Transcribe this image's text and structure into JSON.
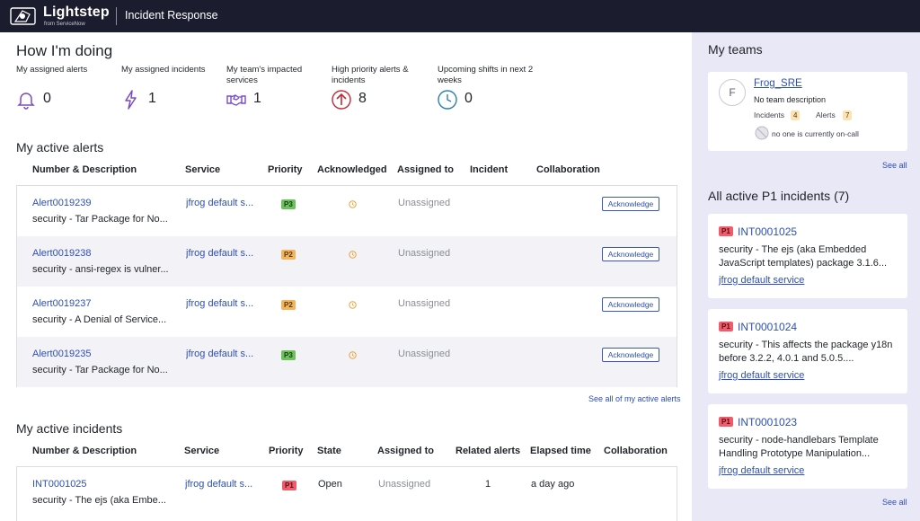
{
  "header": {
    "brand": "Lightstep",
    "brand_sub": "from ServiceNow",
    "app_title": "Incident Response"
  },
  "summary": {
    "title": "How I'm doing",
    "metrics": [
      {
        "label": "My assigned alerts",
        "value": "0",
        "icon": "bell-icon"
      },
      {
        "label": "My assigned incidents",
        "value": "1",
        "icon": "lightning-icon"
      },
      {
        "label": "My team's impacted services",
        "value": "1",
        "icon": "handshake-icon"
      },
      {
        "label": "High priority alerts & incidents",
        "value": "8",
        "icon": "arrow-up-circle-icon"
      },
      {
        "label": "Upcoming shifts in next 2 weeks",
        "value": "0",
        "icon": "clock-icon"
      }
    ]
  },
  "alerts": {
    "title": "My active alerts",
    "columns": [
      "Number & Description",
      "Service",
      "Priority",
      "Acknowledged",
      "Assigned to",
      "Incident",
      "Collaboration"
    ],
    "rows": [
      {
        "number": "Alert0019239",
        "desc": "security - Tar Package for No...",
        "service": "jfrog default s...",
        "priority": "P3",
        "assigned": "Unassigned",
        "action": "Acknowledge"
      },
      {
        "number": "Alert0019238",
        "desc": "security - ansi-regex is vulner...",
        "service": "jfrog default s...",
        "priority": "P2",
        "assigned": "Unassigned",
        "action": "Acknowledge"
      },
      {
        "number": "Alert0019237",
        "desc": "security - A Denial of Service...",
        "service": "jfrog default s...",
        "priority": "P2",
        "assigned": "Unassigned",
        "action": "Acknowledge"
      },
      {
        "number": "Alert0019235",
        "desc": "security - Tar Package for No...",
        "service": "jfrog default s...",
        "priority": "P3",
        "assigned": "Unassigned",
        "action": "Acknowledge"
      }
    ],
    "see_all": "See all of my active alerts"
  },
  "incidents": {
    "title": "My active incidents",
    "columns": [
      "Number & Description",
      "Service",
      "Priority",
      "State",
      "Assigned to",
      "Related alerts",
      "Elapsed time",
      "Collaboration"
    ],
    "rows": [
      {
        "number": "INT0001025",
        "desc": "security - The ejs (aka Embe...",
        "service": "jfrog default s...",
        "priority": "P1",
        "state": "Open",
        "assigned": "Unassigned",
        "related": "1",
        "elapsed": "a day ago"
      }
    ]
  },
  "teams": {
    "title": "My teams",
    "team": {
      "avatar": "F",
      "name": "Frog_SRE",
      "description": "No team description",
      "incidents_label": "Incidents",
      "incidents_count": "4",
      "alerts_label": "Alerts",
      "alerts_count": "7",
      "oncall": "no one is currently on-call"
    },
    "see_all": "See all"
  },
  "p1": {
    "title": "All active P1 incidents (7)",
    "items": [
      {
        "badge": "P1",
        "number": "INT0001025",
        "desc": "security - The ejs (aka Embedded JavaScript templates) package 3.1.6...",
        "service": "jfrog default service"
      },
      {
        "badge": "P1",
        "number": "INT0001024",
        "desc": "security - This affects the package y18n before 3.2.2, 4.0.1 and 5.0.5....",
        "service": "jfrog default service"
      },
      {
        "badge": "P1",
        "number": "INT0001023",
        "desc": "security - node-handlebars Template Handling Prototype Manipulation...",
        "service": "jfrog default service"
      }
    ],
    "see_all": "See all"
  },
  "colors": {
    "topbar": "#1b1d2f",
    "link": "#2d4fb5",
    "sidebar_bg": "#e8e8f6",
    "p1": "#ef5d6c",
    "p2": "#f2b55e",
    "p3": "#6cc05d",
    "icon_purple": "#7a4cc4"
  }
}
